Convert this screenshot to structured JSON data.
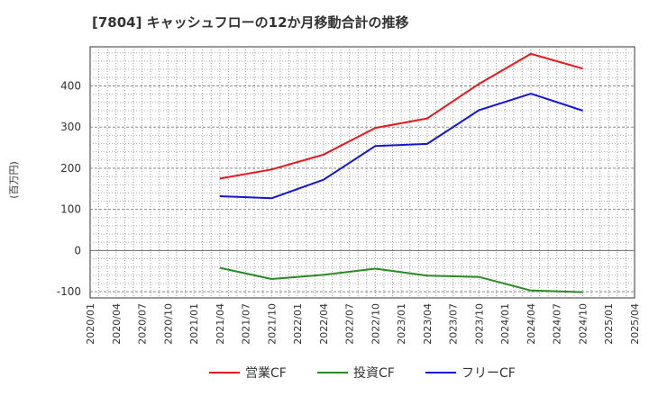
{
  "chart_data": {
    "type": "line",
    "title": "[7804]  キャッシュフローの12か月移動合計の推移",
    "ylabel": "(百万円)",
    "xlabel": "",
    "ylim": [
      -115,
      495
    ],
    "yticks": [
      -100,
      0,
      100,
      200,
      300,
      400
    ],
    "x_ticks": [
      "2020/01",
      "2020/04",
      "2020/07",
      "2020/10",
      "2021/01",
      "2021/04",
      "2021/07",
      "2021/10",
      "2022/01",
      "2022/04",
      "2022/07",
      "2022/10",
      "2023/01",
      "2023/04",
      "2023/07",
      "2023/10",
      "2024/01",
      "2024/04",
      "2024/07",
      "2024/10",
      "2025/01",
      "2025/04"
    ],
    "series": [
      {
        "name": "営業CF",
        "color": "#e8161b",
        "x": [
          "2021/04",
          "2021/10",
          "2022/04",
          "2022/10",
          "2023/04",
          "2023/10",
          "2024/04",
          "2024/10"
        ],
        "values": [
          175,
          197,
          233,
          298,
          321,
          405,
          478,
          442
        ]
      },
      {
        "name": "投資CF",
        "color": "#2a8a24",
        "x": [
          "2021/04",
          "2021/10",
          "2022/04",
          "2022/10",
          "2023/04",
          "2023/10",
          "2024/04",
          "2024/10"
        ],
        "values": [
          -42,
          -69,
          -59,
          -44,
          -61,
          -64,
          -97,
          -101
        ]
      },
      {
        "name": "フリーCF",
        "color": "#1414d8",
        "x": [
          "2021/04",
          "2021/10",
          "2022/04",
          "2022/10",
          "2023/04",
          "2023/10",
          "2024/04",
          "2024/10"
        ],
        "values": [
          132,
          127,
          172,
          254,
          259,
          341,
          381,
          340
        ]
      }
    ],
    "legend_position": "bottom-center",
    "grid": true
  }
}
